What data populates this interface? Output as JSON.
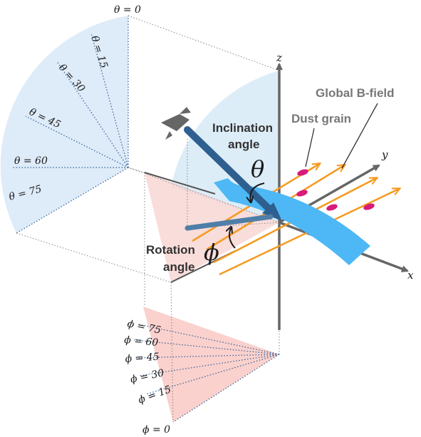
{
  "axes": {
    "z": "z",
    "y": "y",
    "x": "x"
  },
  "labels": {
    "global_bfield": "Global B-field",
    "dust_grain": "Dust grain",
    "inclination_1": "Inclination",
    "inclination_2": "angle",
    "rotation_1": "Rotation",
    "rotation_2": "angle"
  },
  "symbols": {
    "theta": "θ",
    "phi": "ϕ"
  },
  "theta_ticks": [
    "θ = 0",
    "θ = 15",
    "θ = 30",
    "θ = 45",
    "θ = 60",
    "θ = 75"
  ],
  "phi_ticks": [
    "ϕ = 75",
    "ϕ = 60",
    "ϕ = 45",
    "ϕ = 30",
    "ϕ = 15",
    "ϕ = 0"
  ],
  "colors": {
    "theta_fan": "#d8e8f7",
    "phi_fan": "#f9c9c4",
    "outflow": "#4db8f5",
    "bfield": "#f59a1e",
    "dust": "#d81b7a",
    "los_arrow": "#2e5f8f",
    "axis": "#666666"
  }
}
